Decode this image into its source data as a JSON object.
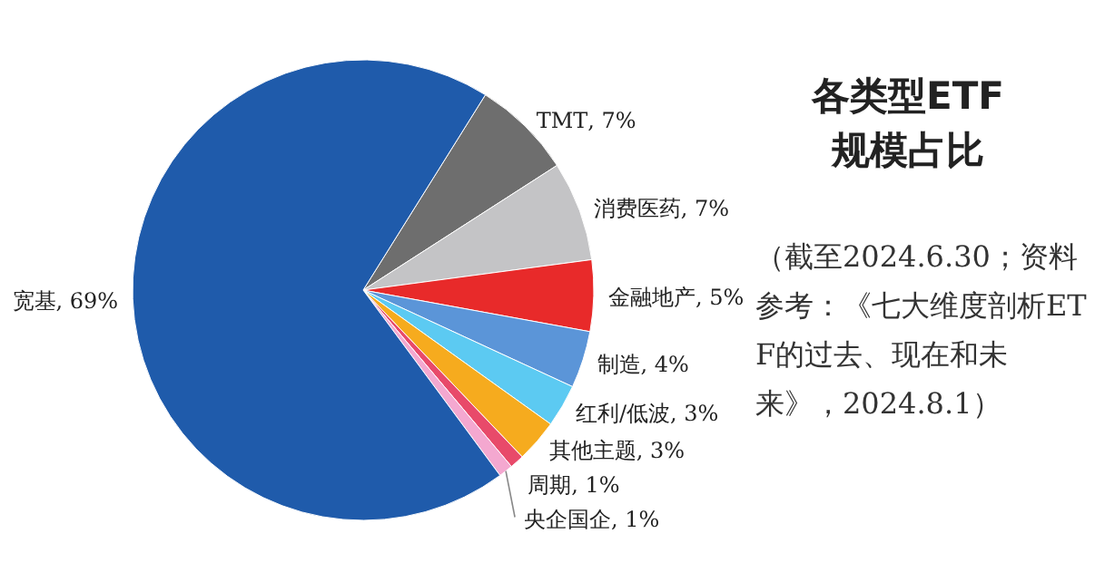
{
  "chart_data": {
    "type": "pie",
    "title": "各类型ETF规模占比",
    "categories": [
      "TMT",
      "消费医药",
      "金融地产",
      "制造",
      "红利/低波",
      "其他主题",
      "周期",
      "央企国企",
      "宽基"
    ],
    "values": [
      7,
      7,
      5,
      4,
      3,
      3,
      1,
      1,
      69
    ],
    "colors": [
      "#6e6e6e",
      "#c4c4c6",
      "#e82a2a",
      "#5b95d8",
      "#5ccaf2",
      "#f6ab1e",
      "#e84a6a",
      "#f4a8d0",
      "#1f5bab"
    ],
    "value_labels": [
      ", 7%",
      ", 7%",
      ", 5%",
      ", 4%",
      ", 3%",
      ", 3%",
      ", 1%",
      ", 1%",
      ", 69%"
    ],
    "annotations": [
      "（截至2024.6.30；资料参考：《七大维度剖析ETF的过去、现在和未来》，2024.8.1）"
    ]
  }
}
